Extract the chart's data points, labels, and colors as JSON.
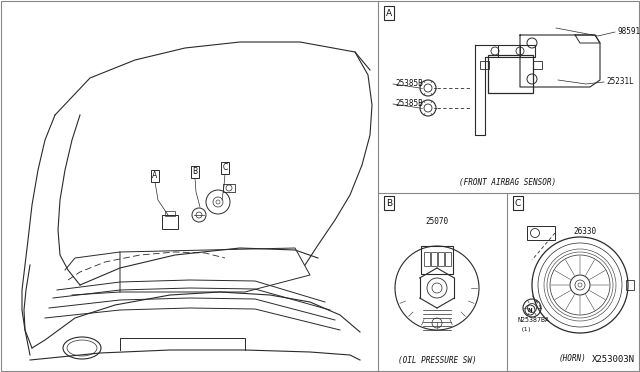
{
  "bg_color": "#ffffff",
  "line_color": "#2a2a2a",
  "text_color": "#111111",
  "border_color": "#444444",
  "fig_width": 6.4,
  "fig_height": 3.72,
  "dpi": 100,
  "diagram_code": "X253003N",
  "part_A_label": "A",
  "part_B_label": "B",
  "part_C_label": "C",
  "title_A": "(FRONT AIRBAG SENSOR)",
  "title_B": "(OIL PRESSURE SW)",
  "title_C": "(HORN)",
  "pn_98591": "98591",
  "pn_25231L": "25231L",
  "pn_25385B": "25385B",
  "pn_25070": "25070",
  "pn_26330": "26330",
  "pn_N25387BA": "N25387BA",
  "pn_qty": "(1)"
}
